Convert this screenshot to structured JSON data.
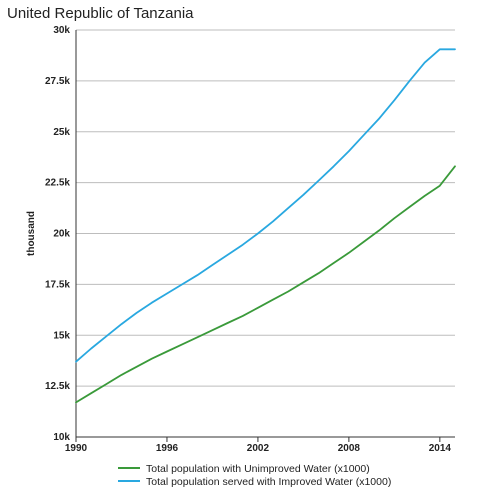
{
  "chart_data": {
    "type": "line",
    "title": "United Republic of Tanzania",
    "ylabel": "thousand",
    "xlabel": "",
    "xlim": [
      1990,
      2015
    ],
    "ylim": [
      10000,
      30000
    ],
    "x_ticks": [
      1990,
      1996,
      2002,
      2008,
      2014
    ],
    "y_ticks": [
      10000,
      12500,
      15000,
      17500,
      20000,
      22500,
      25000,
      27500,
      30000
    ],
    "y_tick_labels": [
      "10k",
      "12.5k",
      "15k",
      "17.5k",
      "20k",
      "22.5k",
      "25k",
      "27.5k",
      "30k"
    ],
    "grid": true,
    "legend_position": "bottom",
    "x": [
      1990,
      1991,
      1992,
      1993,
      1994,
      1995,
      1996,
      1997,
      1998,
      1999,
      2000,
      2001,
      2002,
      2003,
      2004,
      2005,
      2006,
      2007,
      2008,
      2009,
      2010,
      2011,
      2012,
      2013,
      2014,
      2015
    ],
    "series": [
      {
        "name": "Total population with Unimproved Water (x1000)",
        "color": "#3a9a3a",
        "values": [
          11700,
          12150,
          12600,
          13050,
          13450,
          13850,
          14200,
          14550,
          14900,
          15250,
          15600,
          15950,
          16350,
          16750,
          17150,
          17600,
          18050,
          18550,
          19050,
          19600,
          20150,
          20750,
          21300,
          21850,
          22350,
          23300
        ]
      },
      {
        "name": "Total population served with Improved Water (x1000)",
        "color": "#29a8e0",
        "values": [
          13700,
          14350,
          14950,
          15550,
          16100,
          16600,
          17050,
          17500,
          17950,
          18450,
          18950,
          19450,
          20000,
          20600,
          21250,
          21900,
          22600,
          23300,
          24050,
          24850,
          25650,
          26550,
          27500,
          28400,
          29050,
          29050
        ]
      }
    ]
  }
}
